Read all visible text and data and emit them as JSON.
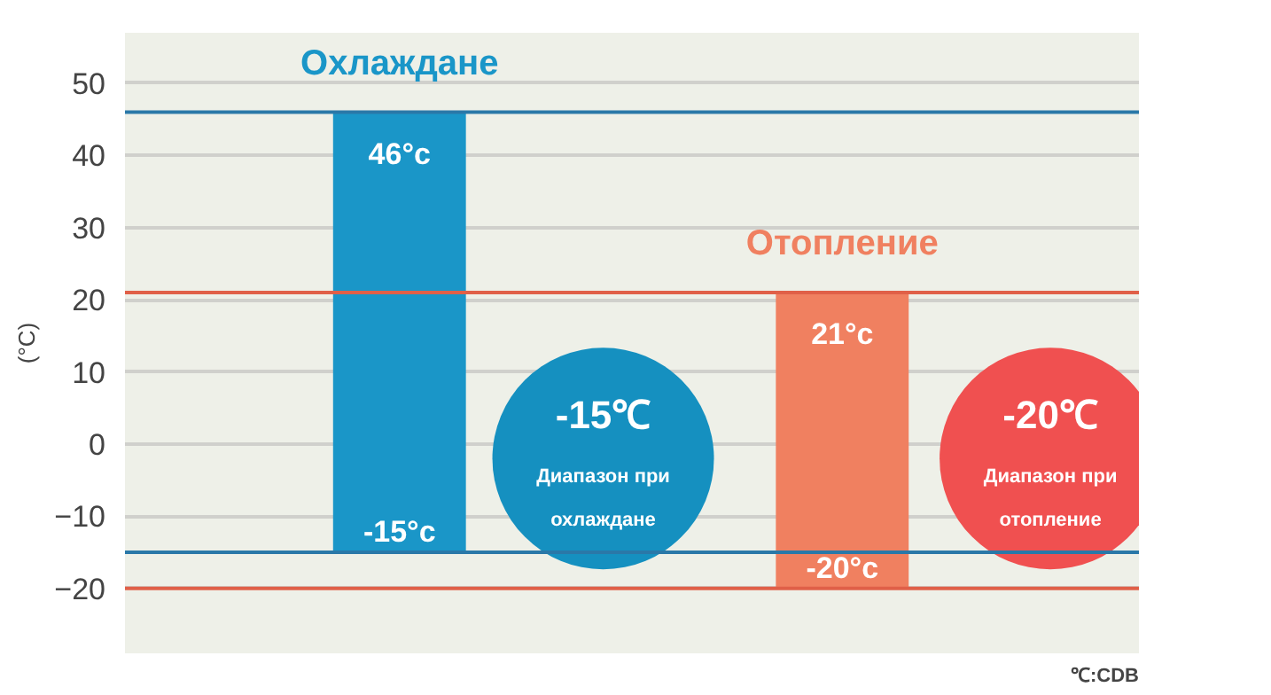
{
  "chart_data": {
    "type": "bar",
    "categories": [
      null,
      null
    ],
    "series": [
      {
        "name": "Охлаждане",
        "color": "#1a96c8",
        "values": [
          61,
          null
        ],
        "base": [
          -15,
          null
        ]
      },
      {
        "name": "Отопление",
        "color": "#f08060",
        "values": [
          null,
          41
        ],
        "base": [
          null,
          -20
        ]
      }
    ],
    "ylabel": "(°C)",
    "ylim": [
      -29,
      57
    ],
    "yticks": [
      -20,
      -10,
      0,
      10,
      20,
      30,
      40,
      50
    ],
    "grid": "y",
    "ref_lines": [
      {
        "axis": "y",
        "value": 46,
        "color": "#2a78a8"
      },
      {
        "axis": "y",
        "value": -15,
        "color": "#2a78a8"
      },
      {
        "axis": "y",
        "value": 21,
        "color": "#e06048"
      },
      {
        "axis": "y",
        "value": -20,
        "color": "#e06048"
      }
    ],
    "annotations": [
      {
        "text": "46°c",
        "y": 46
      },
      {
        "text": "-15°c",
        "y": -15
      },
      {
        "text": "21°c",
        "y": 21
      },
      {
        "text": "-20°c",
        "y": -20
      },
      "-15℃",
      "Диапазон при охлаждане",
      "-20℃",
      "Диапазон при отопление",
      "℃:CDB"
    ]
  }
}
